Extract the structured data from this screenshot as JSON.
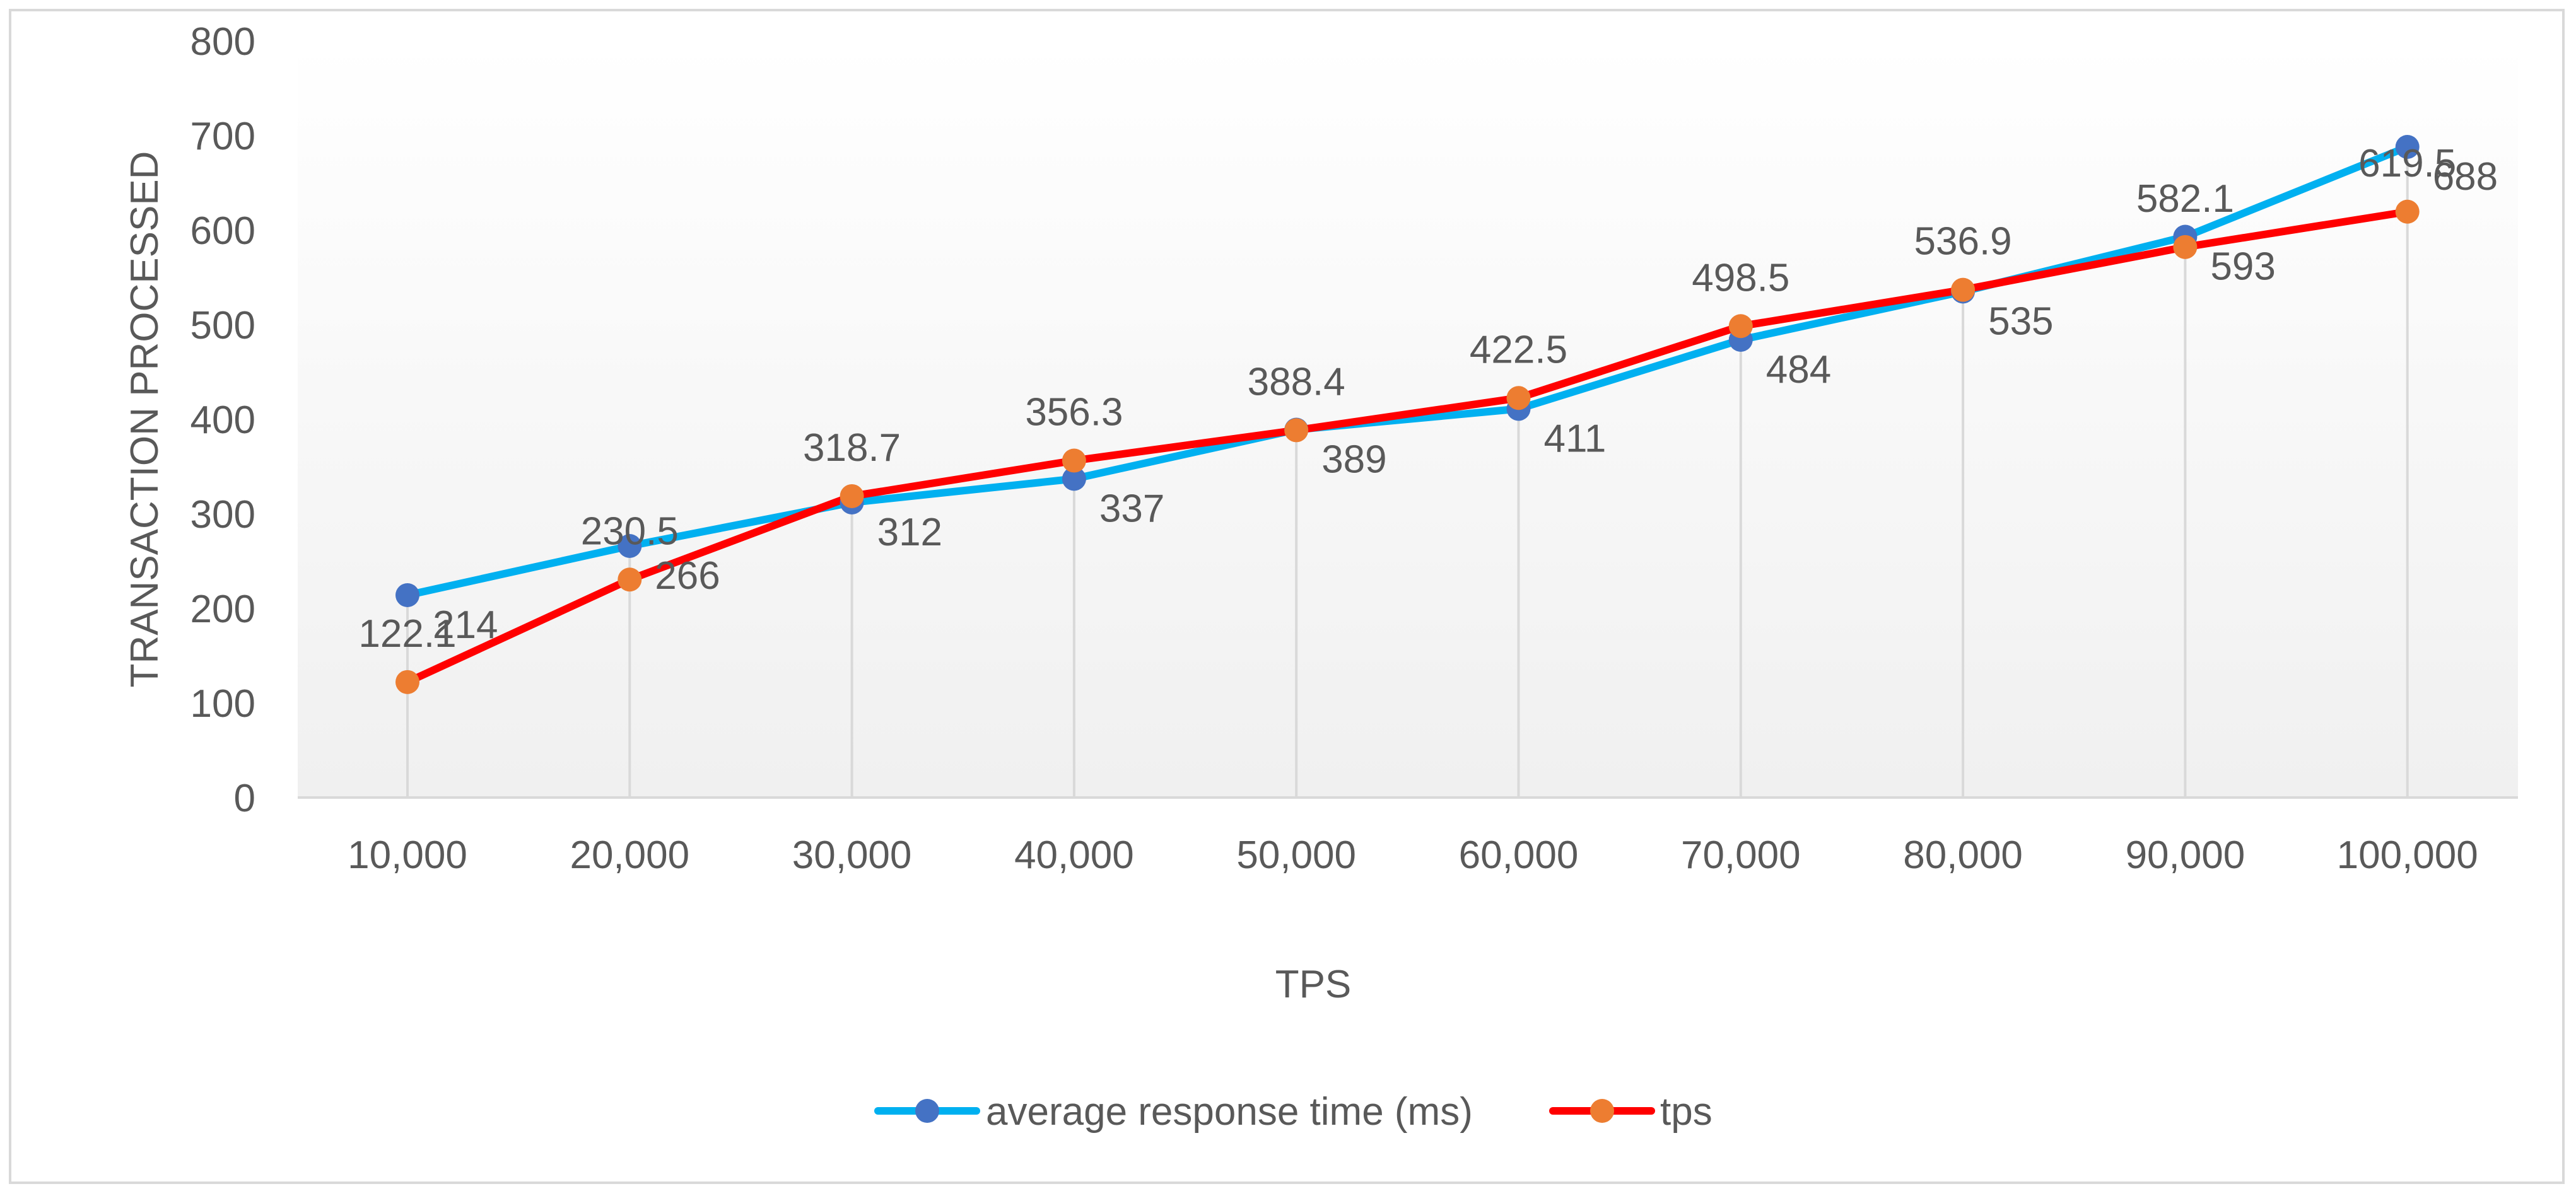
{
  "chart_data": {
    "type": "line",
    "title": "",
    "xlabel": "TPS",
    "ylabel": "TRANSACTION PROCESSED",
    "categories": [
      "10,000",
      "20,000",
      "30,000",
      "40,000",
      "50,000",
      "60,000",
      "70,000",
      "80,000",
      "90,000",
      "100,000"
    ],
    "ylim": [
      0,
      800
    ],
    "yticks": [
      "0",
      "100",
      "200",
      "300",
      "400",
      "500",
      "600",
      "700",
      "800"
    ],
    "grid": "vertical drop lines at each category",
    "legend_position": "bottom",
    "series": [
      {
        "name": "average response time (ms)",
        "line_color": "#00b0f0",
        "marker_color": "#4472c4",
        "values": [
          214,
          266,
          312,
          337,
          389,
          411,
          484,
          535,
          593,
          688
        ],
        "labels": [
          "214",
          "266",
          "312",
          "337",
          "389",
          "411",
          "484",
          "535",
          "593",
          "688"
        ]
      },
      {
        "name": "tps",
        "line_color": "#ff0000",
        "marker_color": "#ed7d31",
        "values": [
          122.1,
          230.5,
          318.7,
          356.3,
          388.4,
          422.5,
          498.5,
          536.9,
          582.1,
          619.5
        ],
        "labels": [
          "122.1",
          "230.5",
          "318.7",
          "356.3",
          "388.4",
          "422.5",
          "498.5",
          "536.9",
          "582.1",
          "619.5"
        ]
      }
    ]
  }
}
